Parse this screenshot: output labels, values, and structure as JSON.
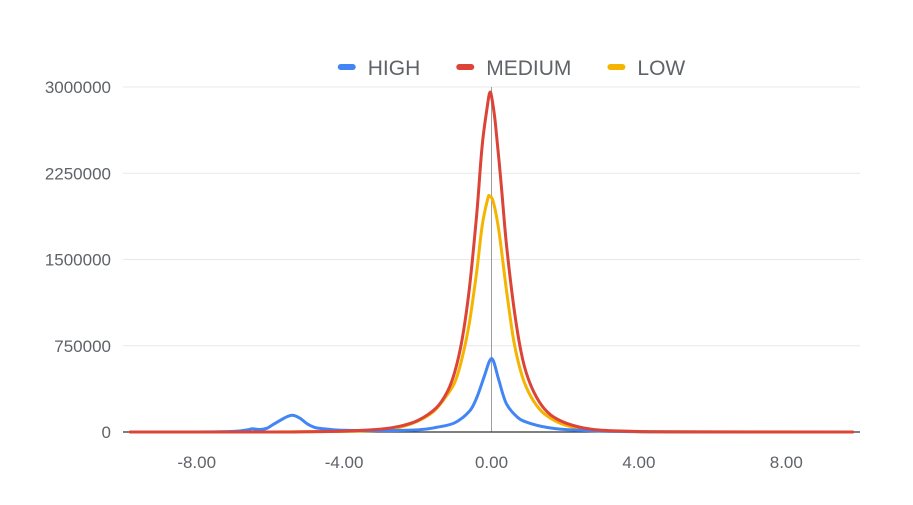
{
  "chart_data": {
    "type": "line",
    "title": "",
    "xlabel": "",
    "ylabel": "",
    "xlim": [
      -10,
      10
    ],
    "ylim": [
      0,
      3000000
    ],
    "grid": true,
    "legend_position": "top-center",
    "x_ticks": [
      -8,
      -4,
      0,
      4,
      8
    ],
    "x_tick_labels": [
      "-8.00",
      "-4.00",
      "0.00",
      "4.00",
      "8.00"
    ],
    "y_ticks": [
      0,
      750000,
      1500000,
      2250000,
      3000000
    ],
    "y_tick_labels": [
      "0",
      "750000",
      "1500000",
      "2250000",
      "3000000"
    ],
    "series": [
      {
        "name": "HIGH",
        "color": "#4285f4",
        "points": [
          [
            -9.8,
            0
          ],
          [
            -8.0,
            0
          ],
          [
            -7.0,
            5000
          ],
          [
            -6.6,
            20000
          ],
          [
            -6.5,
            28000
          ],
          [
            -6.3,
            22000
          ],
          [
            -6.1,
            32000
          ],
          [
            -5.9,
            70000
          ],
          [
            -5.6,
            125000
          ],
          [
            -5.4,
            145000
          ],
          [
            -5.2,
            120000
          ],
          [
            -5.0,
            70000
          ],
          [
            -4.8,
            40000
          ],
          [
            -4.6,
            30000
          ],
          [
            -4.3,
            20000
          ],
          [
            -4.0,
            15000
          ],
          [
            -3.0,
            12000
          ],
          [
            -2.0,
            18000
          ],
          [
            -1.5,
            40000
          ],
          [
            -1.0,
            80000
          ],
          [
            -0.6,
            180000
          ],
          [
            -0.4,
            300000
          ],
          [
            -0.2,
            480000
          ],
          [
            -0.05,
            620000
          ],
          [
            0.05,
            620000
          ],
          [
            0.2,
            450000
          ],
          [
            0.4,
            250000
          ],
          [
            0.7,
            130000
          ],
          [
            1.0,
            80000
          ],
          [
            1.5,
            40000
          ],
          [
            2.0,
            22000
          ],
          [
            3.0,
            8000
          ],
          [
            4.0,
            3000
          ],
          [
            6.0,
            0
          ],
          [
            9.8,
            0
          ]
        ]
      },
      {
        "name": "MEDIUM",
        "color": "#db4437",
        "points": [
          [
            -9.8,
            0
          ],
          [
            -6.0,
            0
          ],
          [
            -5.0,
            2000
          ],
          [
            -4.0,
            8000
          ],
          [
            -3.0,
            25000
          ],
          [
            -2.5,
            50000
          ],
          [
            -2.0,
            100000
          ],
          [
            -1.5,
            210000
          ],
          [
            -1.2,
            350000
          ],
          [
            -1.0,
            520000
          ],
          [
            -0.8,
            800000
          ],
          [
            -0.6,
            1250000
          ],
          [
            -0.4,
            1900000
          ],
          [
            -0.25,
            2500000
          ],
          [
            -0.1,
            2860000
          ],
          [
            -0.05,
            2950000
          ],
          [
            0.0,
            2920000
          ],
          [
            0.1,
            2700000
          ],
          [
            0.25,
            2200000
          ],
          [
            0.4,
            1650000
          ],
          [
            0.6,
            1100000
          ],
          [
            0.8,
            700000
          ],
          [
            1.0,
            460000
          ],
          [
            1.3,
            260000
          ],
          [
            1.6,
            150000
          ],
          [
            2.0,
            80000
          ],
          [
            2.5,
            35000
          ],
          [
            3.0,
            15000
          ],
          [
            4.0,
            4000
          ],
          [
            5.0,
            1000
          ],
          [
            9.8,
            0
          ]
        ]
      },
      {
        "name": "LOW",
        "color": "#f4b400",
        "points": [
          [
            -9.8,
            0
          ],
          [
            -6.0,
            0
          ],
          [
            -4.0,
            5000
          ],
          [
            -3.0,
            15000
          ],
          [
            -2.5,
            40000
          ],
          [
            -2.0,
            95000
          ],
          [
            -1.6,
            170000
          ],
          [
            -1.3,
            280000
          ],
          [
            -1.0,
            430000
          ],
          [
            -0.8,
            640000
          ],
          [
            -0.6,
            950000
          ],
          [
            -0.4,
            1400000
          ],
          [
            -0.25,
            1800000
          ],
          [
            -0.1,
            2030000
          ],
          [
            -0.05,
            2050000
          ],
          [
            0.05,
            2000000
          ],
          [
            0.2,
            1750000
          ],
          [
            0.4,
            1250000
          ],
          [
            0.6,
            800000
          ],
          [
            0.8,
            520000
          ],
          [
            1.0,
            350000
          ],
          [
            1.3,
            200000
          ],
          [
            1.6,
            120000
          ],
          [
            2.0,
            60000
          ],
          [
            2.5,
            25000
          ],
          [
            3.0,
            10000
          ],
          [
            4.0,
            3000
          ],
          [
            9.8,
            0
          ]
        ]
      }
    ]
  }
}
